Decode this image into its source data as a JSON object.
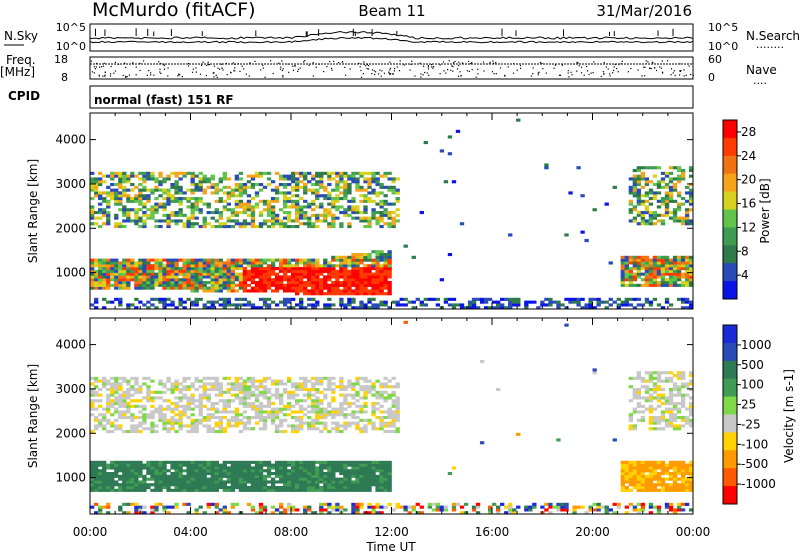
{
  "header": {
    "station": "McMurdo (fitACF)",
    "beam": "Beam 11",
    "date": "31/Mar/2016"
  },
  "strip": {
    "nsky_label": "N.Sky",
    "nsearch_label": "N.Search",
    "nsearch_dots": "........",
    "freq_label": "Freq.",
    "freq_unit": "[MHz]",
    "nave_label": "Nave",
    "nave_dots": "....",
    "cpid_label": "CPID",
    "noise_ticks_left": [
      "10^5",
      "10^0"
    ],
    "noise_ticks_right": [
      "10^5",
      "10^0"
    ],
    "freq_ticks": [
      "18",
      "8"
    ],
    "nave_ticks": [
      "60",
      "0"
    ],
    "program": "normal (fast) 151 RF"
  },
  "colors": {
    "power": [
      "#0a14e6",
      "#2a4ab8",
      "#2e7a4a",
      "#3f9c52",
      "#62c44a",
      "#d6d21e",
      "#f4a31a",
      "#f07212",
      "#ff3a00",
      "#ff0000"
    ],
    "velocity": [
      "#ff0000",
      "#ff5a00",
      "#ff9a00",
      "#ffd200",
      "#c8c8c8",
      "#7fd848",
      "#3f9c52",
      "#2e7a55",
      "#2a4ab8",
      "#1a2ad6"
    ]
  },
  "chart_data": [
    {
      "type": "heatmap",
      "name": "power",
      "xlabel": "",
      "ylabel": "Slant Range [km]",
      "x_range_hours": [
        0,
        24
      ],
      "ylim": [
        180,
        4600
      ],
      "yticks": [
        1000,
        2000,
        3000,
        4000
      ],
      "xticks": [
        "00:00",
        "04:00",
        "08:00",
        "12:00",
        "16:00",
        "20:00",
        "00:00"
      ],
      "colorbar": {
        "label": "Power [dB]",
        "ticks": [
          "4",
          "8",
          "12",
          "16",
          "20",
          "24",
          "28"
        ],
        "range": [
          0,
          30
        ]
      },
      "regions": [
        {
          "t": [
            0.0,
            12.0
          ],
          "r": [
            700,
            1350
          ],
          "level": "strong"
        },
        {
          "t": [
            0.0,
            12.4
          ],
          "r": [
            2000,
            3300
          ],
          "level": "moderate"
        },
        {
          "t": [
            21.2,
            24.0
          ],
          "r": [
            700,
            1400
          ],
          "level": "strong"
        },
        {
          "t": [
            21.5,
            24.0
          ],
          "r": [
            2100,
            3400
          ],
          "level": "moderate"
        }
      ]
    },
    {
      "type": "heatmap",
      "name": "velocity",
      "xlabel": "Time UT",
      "ylabel": "Slant Range [km]",
      "x_range_hours": [
        0,
        24
      ],
      "ylim": [
        180,
        4600
      ],
      "yticks": [
        1000,
        2000,
        3000,
        4000
      ],
      "xticks": [
        "00:00",
        "04:00",
        "08:00",
        "12:00",
        "16:00",
        "20:00",
        "00:00"
      ],
      "colorbar": {
        "label": "Velocity [m s-1]",
        "ticks": [
          "1000",
          "500",
          "100",
          "25",
          "-25",
          "-100",
          "-500",
          "-1000"
        ],
        "range": [
          -1000,
          1000
        ]
      },
      "regions": [
        {
          "t": [
            0.0,
            12.0
          ],
          "r": [
            700,
            1350
          ],
          "level": "toward"
        },
        {
          "t": [
            0.0,
            12.4
          ],
          "r": [
            2000,
            3300
          ],
          "level": "low"
        },
        {
          "t": [
            21.2,
            24.0
          ],
          "r": [
            700,
            1400
          ],
          "level": "away"
        },
        {
          "t": [
            21.5,
            24.0
          ],
          "r": [
            2100,
            3400
          ],
          "level": "low"
        }
      ]
    }
  ]
}
